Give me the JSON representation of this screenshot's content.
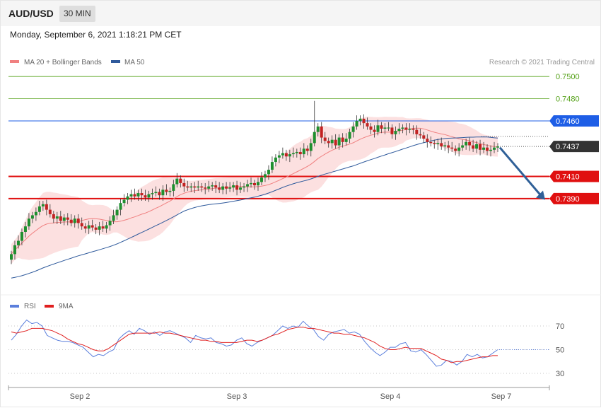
{
  "header": {
    "symbol": "AUD/USD",
    "timeframe": "30 MIN",
    "timestamp": "Monday, September 6, 2021 1:18:21 PM CET"
  },
  "legend_main": [
    {
      "label": "MA 20 + Bollinger Bands",
      "color": "#f08080"
    },
    {
      "label": "MA 50",
      "color": "#2f5a9c"
    }
  ],
  "credit": "Research © 2021 Trading Central",
  "legend_rsi": [
    {
      "label": "RSI",
      "color": "#5b7fdc"
    },
    {
      "label": "9MA",
      "color": "#e02020"
    }
  ],
  "colors": {
    "up": "#1f8f2f",
    "down": "#c22222",
    "resistance_green": "#56a21a",
    "pivot_blue": "#1e5ee6",
    "support_red": "#e01010",
    "current": "#333333",
    "arrow": "#2f6098",
    "band_fill": "#fbd6d6"
  },
  "chart_data": [
    {
      "type": "candlestick",
      "title": "AUD/USD 30 MIN",
      "x_tick_labels": [
        "Sep 2",
        "Sep 3",
        "Sep 4",
        "Sep 7"
      ],
      "ylim": [
        0.7318,
        0.7515
      ],
      "price_levels": [
        {
          "value": 0.75,
          "label": "0.7500",
          "kind": "resistance"
        },
        {
          "value": 0.748,
          "label": "0.7480",
          "kind": "resistance"
        },
        {
          "value": 0.746,
          "label": "0.7460",
          "kind": "pivot"
        },
        {
          "value": 0.7437,
          "label": "0.7437",
          "kind": "current"
        },
        {
          "value": 0.741,
          "label": "0.7410",
          "kind": "support"
        },
        {
          "value": 0.739,
          "label": "0.7390",
          "kind": "support"
        }
      ],
      "forecast_arrow": {
        "from": 0.7436,
        "to": 0.7389
      },
      "close_path": [
        [
          0.734,
          0.7348,
          0.7352,
          0.736,
          0.7365,
          0.7372,
          0.7375,
          0.7378,
          0.7383,
          0.7385
        ],
        [
          0.738,
          0.7376,
          0.7372,
          0.7374,
          0.737,
          0.7373,
          0.7371,
          0.7368,
          0.7372,
          0.7368
        ],
        [
          0.7365,
          0.7363,
          0.7366,
          0.7364,
          0.7362,
          0.7365,
          0.7363,
          0.7366,
          0.737,
          0.7375
        ],
        [
          0.738,
          0.7386,
          0.7389,
          0.7392,
          0.7394,
          0.7392,
          0.7395,
          0.7393,
          0.7391,
          0.7394
        ],
        [
          0.7395,
          0.7396,
          0.7393,
          0.7398,
          0.7396,
          0.7397,
          0.7403,
          0.7408,
          0.7404,
          0.7401
        ],
        [
          0.74,
          0.7401,
          0.74,
          0.7401,
          0.74,
          0.7399,
          0.7401,
          0.7402,
          0.74,
          0.7398
        ],
        [
          0.7401,
          0.7399,
          0.74,
          0.7402,
          0.7398,
          0.74,
          0.7401,
          0.7403,
          0.7404,
          0.7402
        ],
        [
          0.7405,
          0.7409,
          0.7412,
          0.7416,
          0.7423,
          0.7427,
          0.7429,
          0.7431,
          0.7428,
          0.743
        ],
        [
          0.7431,
          0.7432,
          0.743,
          0.7435,
          0.7433,
          0.744,
          0.745,
          0.7455,
          0.7445,
          0.7442
        ],
        [
          0.744,
          0.7443,
          0.7438,
          0.7445,
          0.7441,
          0.7444,
          0.745,
          0.7455,
          0.746,
          0.7462
        ],
        [
          0.7458,
          0.7455,
          0.7452,
          0.745,
          0.7456,
          0.7453,
          0.7454,
          0.7454,
          0.7448,
          0.7451
        ],
        [
          0.7453,
          0.7454,
          0.7452,
          0.7453,
          0.7452,
          0.7448,
          0.7447,
          0.7444,
          0.7441,
          0.744
        ],
        [
          0.7439,
          0.744,
          0.7437,
          0.7438,
          0.7436,
          0.7435,
          0.7433,
          0.7436,
          0.7438,
          0.7441
        ],
        [
          0.7438,
          0.7435,
          0.7439,
          0.7434,
          0.7436,
          0.7433,
          0.7434,
          0.7436,
          0.7437
        ]
      ]
    },
    {
      "type": "line",
      "title": "RSI",
      "ylim": [
        20,
        80
      ],
      "y_ticks": [
        70,
        50,
        30
      ],
      "series": [
        {
          "name": "RSI",
          "values": [
            58,
            63,
            70,
            75,
            72,
            73,
            70,
            62,
            60,
            58,
            57,
            57,
            56,
            54,
            52,
            48,
            44,
            46,
            45,
            48,
            50,
            59,
            63,
            66,
            63,
            68,
            66,
            63,
            65,
            62,
            65,
            66,
            64,
            62,
            60,
            56,
            62,
            60,
            59,
            60,
            56,
            55,
            53,
            54,
            58,
            60,
            55,
            53,
            56,
            58,
            60,
            62,
            66,
            70,
            68,
            70,
            69,
            74,
            70,
            67,
            61,
            58,
            63,
            65,
            66,
            67,
            64,
            65,
            63,
            57,
            52,
            48,
            45,
            48,
            52,
            52,
            55,
            56,
            49,
            48,
            50,
            46,
            41,
            36,
            37,
            41,
            40,
            37,
            40,
            46,
            44,
            46,
            43,
            44,
            47,
            50
          ]
        },
        {
          "name": "9MA",
          "values": [
            65,
            64,
            65,
            66,
            68,
            68,
            68,
            67,
            66,
            64,
            62,
            59,
            57,
            55,
            54,
            52,
            50,
            49,
            49,
            51,
            54,
            57,
            60,
            63,
            64,
            64,
            64,
            64,
            64,
            65,
            64,
            64,
            63,
            62,
            61,
            60,
            59,
            58,
            58,
            57,
            57,
            56,
            56,
            56,
            56,
            57,
            58,
            58,
            57,
            58,
            60,
            62,
            63,
            65,
            67,
            68,
            69,
            69,
            68,
            68,
            67,
            66,
            65,
            64,
            64,
            63,
            63,
            62,
            61,
            60,
            58,
            56,
            53,
            51,
            50,
            50,
            51,
            52,
            51,
            51,
            51,
            49,
            47,
            45,
            42,
            41,
            39,
            40,
            40,
            41,
            42,
            43,
            44,
            44,
            45,
            45
          ]
        }
      ]
    }
  ]
}
